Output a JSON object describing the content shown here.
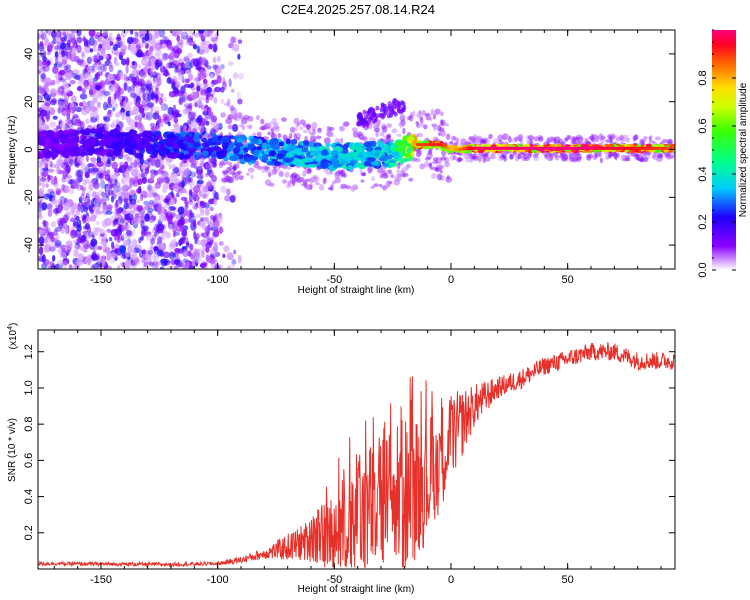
{
  "title": "C2E4.2025.257.08.14.R24",
  "chart_data": [
    {
      "type": "heatmap",
      "xlabel": "Height of straight line (km)",
      "ylabel": "Frequency (Hz)",
      "xlim": [
        -177,
        96
      ],
      "ylim": [
        -50,
        50
      ],
      "xticks": [
        -150,
        -100,
        -50,
        0,
        50
      ],
      "xtick_labels": [
        "-150",
        "-100",
        "-50",
        "0",
        "50"
      ],
      "yticks": [
        -40,
        -20,
        0,
        20,
        40
      ],
      "ytick_labels": [
        "-40",
        "-20",
        "0",
        "20",
        "40"
      ],
      "colorbar": {
        "label": "Normalized spectral amplitude",
        "range": [
          0,
          1
        ],
        "ticks": [
          0.0,
          0.2,
          0.4,
          0.6,
          0.8
        ],
        "tick_labels": [
          "0.0",
          "0.2",
          "0.4",
          "0.6",
          "0.8"
        ]
      },
      "ridge": {
        "description_points_x": [
          -177,
          -150,
          -100,
          -75,
          -50,
          -25,
          -15,
          -5,
          0,
          10,
          50,
          96
        ],
        "freq_hz": [
          2,
          3,
          1,
          -1,
          -3,
          -2,
          2,
          2,
          0,
          0.5,
          0.5,
          0.5
        ],
        "amplitude": [
          0.15,
          0.18,
          0.3,
          0.35,
          0.4,
          0.4,
          0.85,
          0.9,
          0.75,
          0.95,
          0.98,
          0.85
        ]
      }
    },
    {
      "type": "line",
      "xlabel": "Height of straight line (km)",
      "ylabel": "SNR (10 * v/v)",
      "yscale_label": "(x10",
      "yscale_exp": "4",
      "xlim": [
        -177,
        96
      ],
      "ylim": [
        0,
        1.32
      ],
      "xticks": [
        -150,
        -100,
        -50,
        0,
        50
      ],
      "xtick_labels": [
        "-150",
        "-100",
        "-50",
        "0",
        "50"
      ],
      "yticks": [
        0.2,
        0.4,
        0.6,
        0.8,
        1.0,
        1.2
      ],
      "ytick_labels": [
        "0.2",
        "0.4",
        "0.6",
        "0.8",
        "1.0",
        "1.2"
      ],
      "color": "#e8302a",
      "trend_x": [
        -177,
        -120,
        -100,
        -90,
        -70,
        -50,
        -40,
        -30,
        -20,
        -10,
        0,
        10,
        20,
        30,
        40,
        50,
        60,
        70,
        80,
        96
      ],
      "trend_y": [
        0.03,
        0.025,
        0.03,
        0.05,
        0.12,
        0.2,
        0.3,
        0.35,
        0.4,
        0.5,
        0.72,
        0.9,
        1.0,
        1.05,
        1.12,
        1.16,
        1.2,
        1.2,
        1.15,
        1.15
      ],
      "noise_x": [
        -177,
        -100,
        -80,
        -60,
        -40,
        -20,
        0,
        10,
        20,
        40,
        96
      ],
      "noise_amp": [
        0.01,
        0.01,
        0.03,
        0.12,
        0.35,
        0.45,
        0.25,
        0.12,
        0.06,
        0.05,
        0.05
      ]
    }
  ]
}
